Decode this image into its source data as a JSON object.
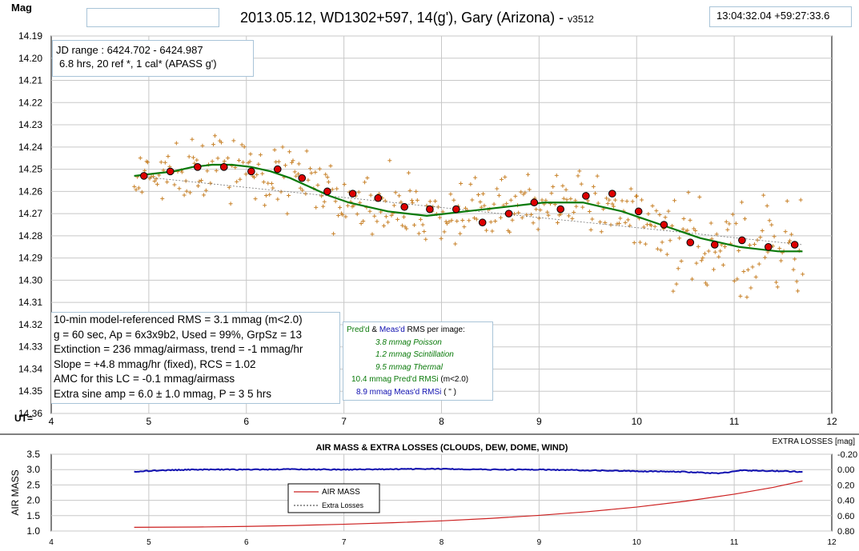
{
  "header": {
    "ylabel": "Mag",
    "title": "2013.05.12, WD1302+597, 14(g'), Gary (Arizona) - ",
    "version": "v3512",
    "coords": "13:04:32.04  +59:27:33.6",
    "empty_box": ""
  },
  "info_top": {
    "line1": "JD range : 6424.702 - 6424.987",
    "line2": "6.8 hrs, 20 ref *, 1 cal* (APASS g')"
  },
  "info_left": {
    "line1": "10-min model-referenced RMS = 3.1 mmag (m<2.0)",
    "line2": "g = 60 sec, Ap = 6x3x9b2,  Used = 99%,  GrpSz = 13",
    "line3": "Extinction = 236 mmag/airmass, trend = -1 mmag/hr",
    "line4": "Slope = +4.8 mmag/hr (fixed),  RCS = 1.02",
    "line5": "AMC for this LC = -0.1 mmag/airmass",
    "line6": "Extra sine amp = 6.0 ± 1.0 mmag, P = 3 5 hrs"
  },
  "info_rms": {
    "pred": "Pred'd",
    "amp": "&",
    "meas": "Meas'd",
    "rest": "RMS per image:",
    "l1": "3.8  mmag Poisson",
    "l2": "1.2  mmag Scintillation",
    "l3": "9.5  mmag Thermal",
    "l4a": "10.4 mmag   Pred'd  RMSi",
    "l4b": "(m<2.0)",
    "l5a": "8.9 mmag   Meas'd RMSi",
    "l5b": "(   \"   )"
  },
  "colors": {
    "scatter": "#c8822a",
    "binned": "#dd0000",
    "model": "#0a7a0a",
    "airmass": "#cc2020",
    "losses": "#1010b0",
    "grid": "#c8c8c8"
  },
  "chart_data": [
    {
      "type": "scatter",
      "title": "",
      "xlabel": "UT=",
      "ylabel": "Mag",
      "xlim": [
        4,
        12
      ],
      "ylim": [
        14.36,
        14.19
      ],
      "y_inverted": true,
      "grid": true,
      "xticks": [
        4,
        5,
        6,
        7,
        8,
        9,
        10,
        11,
        12
      ],
      "yticks": [
        14.19,
        14.2,
        14.21,
        14.22,
        14.23,
        14.24,
        14.25,
        14.26,
        14.27,
        14.28,
        14.29,
        14.3,
        14.31,
        14.32,
        14.33,
        14.34,
        14.35,
        14.36
      ],
      "ytick_labels": [
        "14.19",
        "14.20",
        "14.21",
        "14.22",
        "14.23",
        "14.24",
        "14.25",
        "14.26",
        "14.27",
        "14.28",
        "14.29",
        "14.30",
        "14.31",
        "14.32",
        "14.33",
        "14.34",
        "14.35",
        "14.36"
      ],
      "binned_x": [
        4.95,
        5.22,
        5.5,
        5.77,
        6.05,
        6.32,
        6.57,
        6.83,
        7.09,
        7.35,
        7.62,
        7.88,
        8.15,
        8.42,
        8.69,
        8.95,
        9.22,
        9.48,
        9.75,
        10.02,
        10.28,
        10.55,
        10.8,
        11.08,
        11.35,
        11.62
      ],
      "binned_y": [
        14.253,
        14.251,
        14.249,
        14.249,
        14.251,
        14.25,
        14.254,
        14.26,
        14.261,
        14.263,
        14.267,
        14.268,
        14.268,
        14.274,
        14.27,
        14.265,
        14.268,
        14.262,
        14.261,
        14.269,
        14.275,
        14.283,
        14.284,
        14.282,
        14.285,
        14.284
      ],
      "model_x": [
        4.85,
        5.05,
        5.25,
        5.45,
        5.65,
        5.85,
        6.05,
        6.25,
        6.45,
        6.65,
        6.85,
        7.05,
        7.25,
        7.45,
        7.65,
        7.85,
        8.05,
        8.25,
        8.45,
        8.65,
        8.85,
        9.05,
        9.25,
        9.45,
        9.65,
        9.85,
        10.05,
        10.25,
        10.45,
        10.65,
        10.85,
        11.05,
        11.25,
        11.45,
        11.7
      ],
      "model_y": [
        14.253,
        14.252,
        14.251,
        14.249,
        14.248,
        14.248,
        14.249,
        14.251,
        14.254,
        14.258,
        14.262,
        14.265,
        14.267,
        14.269,
        14.27,
        14.271,
        14.27,
        14.269,
        14.268,
        14.267,
        14.266,
        14.265,
        14.265,
        14.265,
        14.267,
        14.269,
        14.272,
        14.275,
        14.278,
        14.281,
        14.283,
        14.285,
        14.286,
        14.287,
        14.287
      ],
      "trend_x": [
        4.85,
        11.7
      ],
      "trend_y": [
        14.253,
        14.284
      ],
      "scatter_range": [
        4.85,
        11.7
      ],
      "scatter_count": 430
    },
    {
      "type": "line",
      "title": "AIR MASS & EXTRA LOSSES  (CLOUDS,  DEW,  DOME,  WIND)",
      "ylabel": "AIR MASS",
      "y2label": "EXTRA LOSSES [mag]",
      "xlim": [
        4,
        12
      ],
      "ylim": [
        1.0,
        3.5
      ],
      "y2lim": [
        0.8,
        -0.2
      ],
      "xticks": [
        4,
        5,
        6,
        7,
        8,
        9,
        10,
        11,
        12
      ],
      "yticks": [
        1.0,
        1.5,
        2.0,
        2.5,
        3.0,
        3.5
      ],
      "ytick_labels": [
        "1.0",
        "1.5",
        "2.0",
        "2.5",
        "3.0",
        "3.5"
      ],
      "y2ticks": [
        -0.2,
        0.0,
        0.2,
        0.4,
        0.6,
        0.8
      ],
      "y2tick_labels": [
        "-0.20",
        "0.00",
        "0.20",
        "0.40",
        "0.60",
        "0.80"
      ],
      "legend": [
        "AIR MASS",
        "Extra Losses"
      ],
      "legend_position": "center-left",
      "series": [
        {
          "name": "AIR MASS",
          "x": [
            4.85,
            5.5,
            6.0,
            6.5,
            7.0,
            7.5,
            8.0,
            8.5,
            9.0,
            9.5,
            10.0,
            10.5,
            11.0,
            11.4,
            11.7
          ],
          "values": [
            1.12,
            1.13,
            1.15,
            1.18,
            1.22,
            1.27,
            1.33,
            1.41,
            1.51,
            1.63,
            1.78,
            1.97,
            2.2,
            2.42,
            2.63
          ]
        },
        {
          "name": "Extra Losses",
          "x": [
            4.85,
            4.95,
            5.1,
            5.5,
            6.0,
            6.5,
            7.0,
            7.5,
            8.0,
            8.5,
            9.0,
            9.5,
            10.0,
            10.5,
            10.85,
            10.95,
            11.05,
            11.5,
            11.7
          ],
          "values": [
            0.03,
            0.02,
            0.01,
            0.0,
            0.0,
            -0.005,
            0.0,
            -0.005,
            -0.01,
            0.0,
            0.0,
            0.01,
            0.02,
            0.03,
            0.05,
            0.03,
            0.01,
            0.02,
            0.03
          ]
        }
      ]
    }
  ]
}
